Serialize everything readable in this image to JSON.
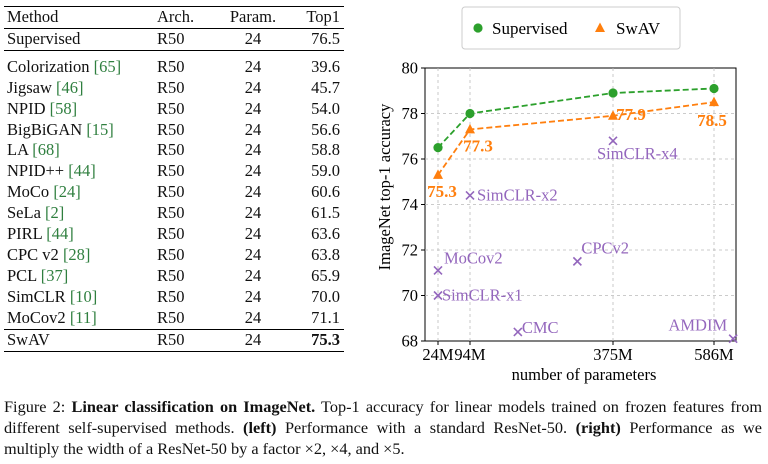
{
  "table": {
    "headers": [
      "Method",
      "Arch.",
      "Param.",
      "Top1"
    ],
    "supervised_row": {
      "method": "Supervised",
      "arch": "R50",
      "param": "24",
      "top1": "76.5"
    },
    "rows": [
      {
        "method": "Colorization",
        "cite": "[65]",
        "arch": "R50",
        "param": "24",
        "top1": "39.6"
      },
      {
        "method": "Jigsaw",
        "cite": "[46]",
        "arch": "R50",
        "param": "24",
        "top1": "45.7"
      },
      {
        "method": "NPID",
        "cite": "[58]",
        "arch": "R50",
        "param": "24",
        "top1": "54.0"
      },
      {
        "method": "BigBiGAN",
        "cite": "[15]",
        "arch": "R50",
        "param": "24",
        "top1": "56.6"
      },
      {
        "method": "LA",
        "cite": "[68]",
        "arch": "R50",
        "param": "24",
        "top1": "58.8"
      },
      {
        "method": "NPID++",
        "cite": "[44]",
        "arch": "R50",
        "param": "24",
        "top1": "59.0"
      },
      {
        "method": "MoCo",
        "cite": "[24]",
        "arch": "R50",
        "param": "24",
        "top1": "60.6"
      },
      {
        "method": "SeLa",
        "cite": "[2]",
        "arch": "R50",
        "param": "24",
        "top1": "61.5"
      },
      {
        "method": "PIRL",
        "cite": "[44]",
        "arch": "R50",
        "param": "24",
        "top1": "63.6"
      },
      {
        "method": "CPC v2",
        "cite": "[28]",
        "arch": "R50",
        "param": "24",
        "top1": "63.8"
      },
      {
        "method": "PCL",
        "cite": "[37]",
        "arch": "R50",
        "param": "24",
        "top1": "65.9"
      },
      {
        "method": "SimCLR",
        "cite": "[10]",
        "arch": "R50",
        "param": "24",
        "top1": "70.0"
      },
      {
        "method": "MoCov2",
        "cite": "[11]",
        "arch": "R50",
        "param": "24",
        "top1": "71.1"
      }
    ],
    "swav_row": {
      "method": "SwAV",
      "arch": "R50",
      "param": "24",
      "top1": "75.3"
    }
  },
  "chart_data": {
    "type": "line",
    "xlabel": "number of parameters",
    "ylabel": "ImageNet top-1 accuracy",
    "x_ticks": [
      {
        "label": "24M",
        "value": 24
      },
      {
        "label": "94M",
        "value": 94
      },
      {
        "label": "375M",
        "value": 375
      },
      {
        "label": "586M",
        "value": 586
      }
    ],
    "ylim": [
      68,
      80
    ],
    "y_ticks": [
      68,
      70,
      72,
      74,
      76,
      78,
      80
    ],
    "grid": true,
    "legend_position": "top",
    "colors": {
      "supervised": "#2ca02c",
      "swav": "#ff7f0e",
      "others": "#9467bd"
    },
    "series": [
      {
        "name": "Supervised",
        "marker": "circle",
        "x": [
          24,
          94,
          375,
          586
        ],
        "y": [
          76.5,
          78.0,
          78.9,
          79.1
        ]
      },
      {
        "name": "SwAV",
        "marker": "triangle",
        "x": [
          24,
          94,
          375,
          586
        ],
        "y": [
          75.3,
          77.3,
          77.9,
          78.5
        ]
      }
    ],
    "swav_labels": [
      "75.3",
      "77.3",
      "77.9",
      "78.5"
    ],
    "others": [
      {
        "name": "SimCLR-x4",
        "x": 375,
        "y": 76.8
      },
      {
        "name": "SimCLR-x2",
        "x": 94,
        "y": 74.4
      },
      {
        "name": "MoCov2",
        "x": 24,
        "y": 71.1
      },
      {
        "name": "CPCv2",
        "x": 305,
        "y": 71.5
      },
      {
        "name": "SimCLR-x1",
        "x": 24,
        "y": 70.0
      },
      {
        "name": "CMC",
        "x": 188,
        "y": 68.4
      },
      {
        "name": "AMDIM",
        "x": 626,
        "y": 68.1
      }
    ]
  },
  "caption": {
    "label": "Figure 2:",
    "title": "Linear classification on ImageNet.",
    "text1": "Top-1 accuracy for linear models trained on frozen features from different self-supervised methods.",
    "left_tag": "(left)",
    "text2": "Performance with a standard ResNet-50.",
    "right_tag": "(right)",
    "text3": "Performance as we multiply the width of a ResNet-50 by a factor ×2, ×4, and ×5."
  }
}
